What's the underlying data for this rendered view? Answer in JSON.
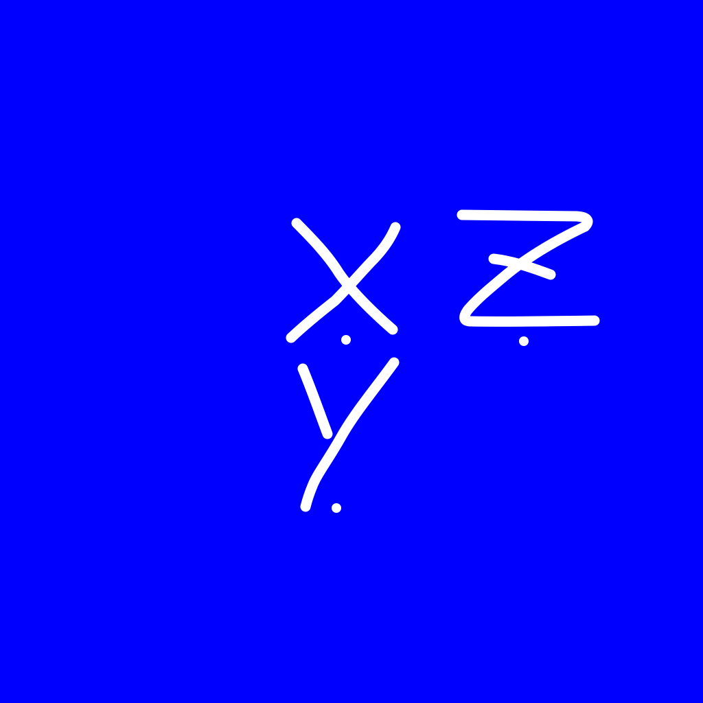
{
  "background_color": "#0000ff",
  "stroke_color": "#ffffff",
  "handwriting": {
    "glyphs": [
      {
        "id": "x",
        "text": "X."
      },
      {
        "id": "z",
        "text": "Z."
      },
      {
        "id": "y",
        "text": "Y."
      }
    ]
  }
}
